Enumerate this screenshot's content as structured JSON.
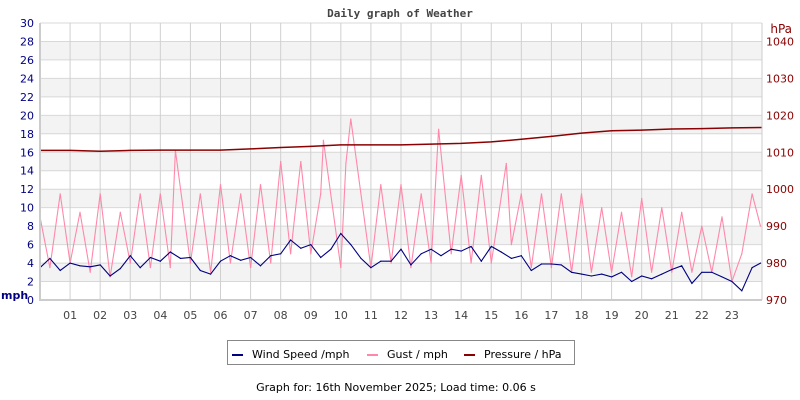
{
  "chart_data": {
    "type": "line",
    "title": "Daily graph of Weather",
    "xlabel": "",
    "x_ticks": [
      "01",
      "02",
      "03",
      "04",
      "05",
      "06",
      "07",
      "08",
      "09",
      "10",
      "11",
      "12",
      "13",
      "14",
      "15",
      "16",
      "17",
      "18",
      "19",
      "20",
      "21",
      "22",
      "23"
    ],
    "xlim_hours": [
      0,
      24
    ],
    "left_axis": {
      "label": "mph",
      "range": [
        0,
        30
      ],
      "ticks": [
        0,
        2,
        4,
        6,
        8,
        10,
        12,
        14,
        16,
        18,
        20,
        22,
        24,
        26,
        28,
        30
      ],
      "color": "#000080"
    },
    "right_axis": {
      "label": "hPa",
      "range": [
        970,
        1045
      ],
      "ticks": [
        970,
        980,
        990,
        1000,
        1010,
        1020,
        1030,
        1040
      ],
      "color": "#8b0000"
    },
    "grid": true,
    "legend_position": "bottom",
    "series": [
      {
        "name": "Wind Speed /mph",
        "axis": "left",
        "color": "#000080",
        "x_hours": [
          0,
          0.33,
          0.67,
          1,
          1.33,
          1.67,
          2,
          2.33,
          2.67,
          3,
          3.33,
          3.67,
          4,
          4.33,
          4.67,
          5,
          5.33,
          5.67,
          6,
          6.33,
          6.67,
          7,
          7.33,
          7.67,
          8,
          8.33,
          8.67,
          9,
          9.33,
          9.67,
          10,
          10.33,
          10.67,
          11,
          11.33,
          11.67,
          12,
          12.33,
          12.67,
          13,
          13.33,
          13.67,
          14,
          14.33,
          14.67,
          15,
          15.33,
          15.67,
          16,
          16.33,
          16.67,
          17,
          17.33,
          17.67,
          18,
          18.33,
          18.67,
          19,
          19.33,
          19.67,
          20,
          20.33,
          20.67,
          21,
          21.33,
          21.67,
          22,
          22.33,
          22.67,
          23,
          23.33,
          23.67,
          23.95
        ],
        "values": [
          3.5,
          4.5,
          3.2,
          4.0,
          3.7,
          3.6,
          3.8,
          2.6,
          3.4,
          4.8,
          3.5,
          4.6,
          4.2,
          5.2,
          4.5,
          4.6,
          3.2,
          2.8,
          4.2,
          4.8,
          4.3,
          4.6,
          3.7,
          4.8,
          5.0,
          6.5,
          5.6,
          6.0,
          4.6,
          5.5,
          7.2,
          6.0,
          4.5,
          3.5,
          4.2,
          4.2,
          5.5,
          3.8,
          5.0,
          5.5,
          4.8,
          5.5,
          5.3,
          5.8,
          4.2,
          5.8,
          5.2,
          4.5,
          4.8,
          3.2,
          3.9,
          3.9,
          3.8,
          3.0,
          2.8,
          2.6,
          2.8,
          2.5,
          3.0,
          2.0,
          2.6,
          2.3,
          2.8,
          3.3,
          3.7,
          1.8,
          3.0,
          3.0,
          2.5,
          2.0,
          1.0,
          3.5,
          4.0
        ]
      },
      {
        "name": "Gust / mph",
        "axis": "left",
        "color": "#ff88aa",
        "x_hours": [
          0,
          0.33,
          0.67,
          1,
          1.33,
          1.67,
          2,
          2.33,
          2.67,
          3,
          3.33,
          3.67,
          4,
          4.33,
          4.5,
          5,
          5.33,
          5.67,
          6,
          6.33,
          6.67,
          7,
          7.33,
          7.67,
          8,
          8.33,
          8.67,
          9,
          9.33,
          9.42,
          10,
          10.17,
          10.33,
          11,
          11.33,
          11.67,
          12,
          12.33,
          12.67,
          13,
          13.25,
          13.67,
          14,
          14.33,
          14.67,
          15,
          15.5,
          15.67,
          16,
          16.33,
          16.67,
          17,
          17.33,
          17.67,
          18,
          18.33,
          18.67,
          19,
          19.33,
          19.67,
          20,
          20.33,
          20.67,
          21,
          21.33,
          21.67,
          22,
          22.33,
          22.67,
          23,
          23.33,
          23.67,
          23.95
        ],
        "values": [
          9,
          3.5,
          11.5,
          4,
          9.5,
          3,
          11.5,
          2.5,
          9.5,
          4,
          11.5,
          3.5,
          11.5,
          3.5,
          16.2,
          4,
          11.5,
          3,
          12.5,
          4,
          11.5,
          3.5,
          12.5,
          4,
          15,
          5,
          15,
          5,
          11.5,
          17.3,
          3.5,
          14.8,
          19.6,
          3.5,
          12.5,
          4,
          12.5,
          3.5,
          11.5,
          4,
          18.5,
          5,
          13.5,
          4,
          13.5,
          4,
          14.8,
          6,
          11.5,
          3.5,
          11.5,
          3.5,
          11.5,
          3,
          11.5,
          3,
          10,
          3,
          9.5,
          2.5,
          11,
          3,
          10,
          3,
          9.5,
          3,
          8,
          3,
          9,
          2,
          5,
          11.5,
          8
        ]
      },
      {
        "name": "Pressure / hPa",
        "axis": "right",
        "color": "#8b0000",
        "x_hours": [
          0,
          1,
          2,
          3,
          4,
          5,
          6,
          7,
          8,
          9,
          10,
          11,
          12,
          13,
          14,
          15,
          16,
          17,
          18,
          19,
          20,
          21,
          22,
          23,
          24
        ],
        "values": [
          1010.5,
          1010.5,
          1010.3,
          1010.5,
          1010.6,
          1010.6,
          1010.6,
          1010.9,
          1011.3,
          1011.6,
          1012.0,
          1012.0,
          1012.0,
          1012.2,
          1012.4,
          1012.8,
          1013.5,
          1014.3,
          1015.2,
          1015.8,
          1016.0,
          1016.3,
          1016.4,
          1016.6,
          1016.7
        ]
      }
    ]
  },
  "footer": "Graph for: 16th November 2025; Load time: 0.06 s"
}
